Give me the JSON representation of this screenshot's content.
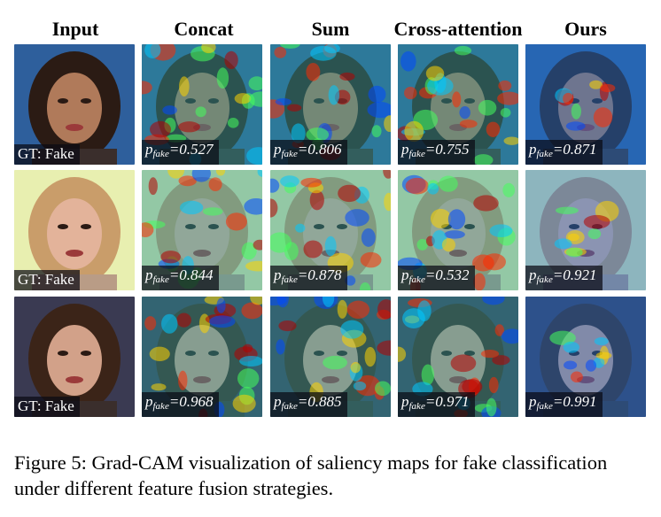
{
  "headers": [
    "Input",
    "Concat",
    "Sum",
    "Cross-attention",
    "Ours"
  ],
  "gt_label": "GT: Fake",
  "p_prefix": "p",
  "p_sub": "fake",
  "rows": [
    {
      "scores": [
        "=0.527",
        "=0.806",
        "=0.755",
        "=0.871"
      ],
      "background": "#2e5f9c",
      "hair": "#2b1b14",
      "skin": "#b07a5a"
    },
    {
      "scores": [
        "=0.844",
        "=0.878",
        "=0.532",
        "=0.921"
      ],
      "background": "#e8efb0",
      "hair": "#c99d6a",
      "skin": "#e3b39a"
    },
    {
      "scores": [
        "=0.968",
        "=0.885",
        "=0.971",
        "=0.991"
      ],
      "background": "#3a3a52",
      "hair": "#3b2418",
      "skin": "#d2a189"
    }
  ],
  "caption": "Figure 5: Grad-CAM visualization of saliency maps for fake classification under different feature fusion strategies."
}
